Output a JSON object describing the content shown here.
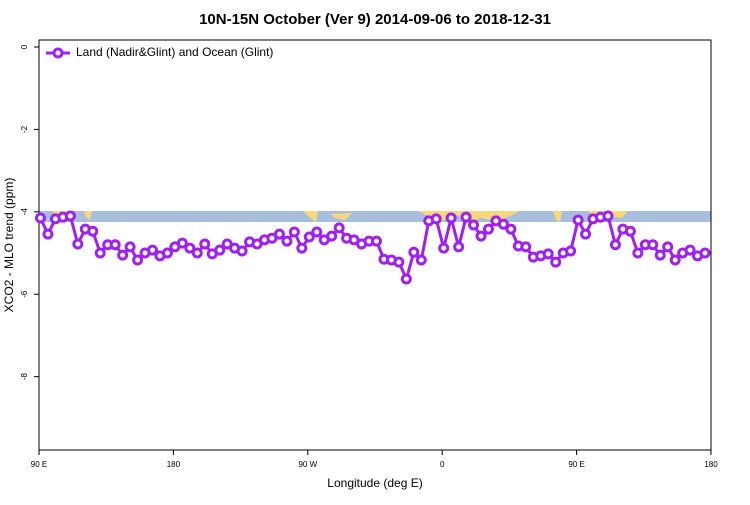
{
  "chart_data": {
    "type": "line",
    "title": "10N-15N October (Ver 9)   2014-09-06 to 2018-12-31",
    "x_label": "Longitude (deg E)",
    "y_label": "XCO2 - MLO trend (ppm)",
    "x": [
      91,
      96,
      101,
      106,
      111,
      116,
      121,
      126,
      131,
      136,
      141,
      146,
      151,
      156,
      161,
      166,
      171,
      176,
      181,
      186,
      191,
      196,
      201,
      206,
      211,
      216,
      221,
      226,
      231,
      236,
      241,
      246,
      251,
      256,
      261,
      266,
      271,
      276,
      281,
      286,
      291,
      296,
      301,
      306,
      311,
      316,
      321,
      326,
      331,
      336,
      341,
      346,
      351,
      356,
      361,
      366,
      371,
      376,
      381,
      386,
      391,
      396,
      401,
      406,
      411,
      416,
      421,
      426,
      431,
      436,
      441,
      446,
      451,
      456,
      461,
      466,
      471,
      476,
      481,
      486,
      491,
      496,
      501,
      506,
      511,
      516,
      521,
      526,
      531,
      536
    ],
    "series": [
      {
        "name": "Land (Nadir&Glint) and Ocean (Glint)",
        "color": "#a020f0",
        "values": [
          -4.15,
          -4.54,
          -4.17,
          -4.13,
          -4.1,
          -4.78,
          -4.42,
          -4.47,
          -5.0,
          -4.8,
          -4.8,
          -5.05,
          -4.85,
          -5.17,
          -5.0,
          -4.93,
          -5.07,
          -5.0,
          -4.85,
          -4.76,
          -4.88,
          -5.0,
          -4.78,
          -5.02,
          -4.93,
          -4.78,
          -4.88,
          -4.95,
          -4.73,
          -4.78,
          -4.68,
          -4.64,
          -4.54,
          -4.71,
          -4.49,
          -4.88,
          -4.61,
          -4.49,
          -4.68,
          -4.59,
          -4.39,
          -4.64,
          -4.68,
          -4.78,
          -4.71,
          -4.71,
          -5.15,
          -5.17,
          -5.22,
          -5.63,
          -4.98,
          -5.17,
          -4.22,
          -4.17,
          -4.88,
          -4.15,
          -4.85,
          -4.13,
          -4.32,
          -4.59,
          -4.42,
          -4.22,
          -4.3,
          -4.42,
          -4.83,
          -4.85,
          -5.1,
          -5.07,
          -5.02,
          -5.22,
          -5.0,
          -4.95,
          -4.2,
          -4.54,
          -4.17,
          -4.13,
          -4.1,
          -4.8,
          -4.42,
          -4.47,
          -5.0,
          -4.8,
          -4.8,
          -5.05,
          -4.85,
          -5.17,
          -5.0,
          -4.93,
          -5.07,
          -5.0
        ]
      }
    ],
    "xlim": [
      90,
      540
    ],
    "xticks": [
      {
        "value": 90,
        "label": "90 E"
      },
      180,
      {
        "value": 270,
        "label": "90 W"
      },
      {
        "value": 360,
        "label": "0"
      },
      {
        "value": 450,
        "label": "90 E"
      },
      {
        "value": 540,
        "label": "180"
      }
    ],
    "ylim": [
      -9.78,
      0.17
    ],
    "yticks": [
      0,
      -2,
      -4,
      -6,
      -8
    ],
    "legend": "top-left",
    "grid": false
  }
}
